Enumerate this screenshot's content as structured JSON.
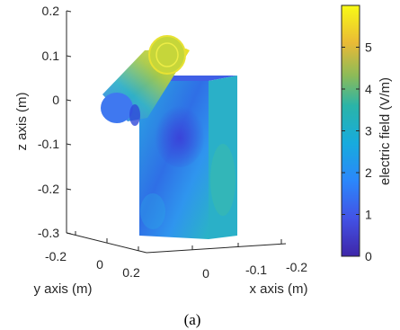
{
  "chart_data": {
    "type": "3d-surface",
    "zlabel": "z axis (m)",
    "ylabel": "y axis (m)",
    "xlabel": "x axis (m)",
    "z_ticks": [
      "0.2",
      "0.1",
      "0",
      "-0.1",
      "-0.2",
      "-0.3"
    ],
    "y_ticks": [
      "-0.2",
      "0",
      "0.2"
    ],
    "x_ticks": [
      "0",
      "-0.1",
      "-0.2"
    ],
    "zlim": [
      -0.3,
      0.2
    ],
    "colorbar": {
      "label": "electric field (V/m)",
      "range": [
        0,
        6
      ],
      "ticks": [
        "5",
        "4",
        "3",
        "2",
        "1",
        "0"
      ],
      "colormap": "parula"
    },
    "caption": "(a)"
  },
  "colors": {
    "low": "#3e26a8",
    "mid": "#2ab4a8",
    "high": "#f9fb15"
  }
}
